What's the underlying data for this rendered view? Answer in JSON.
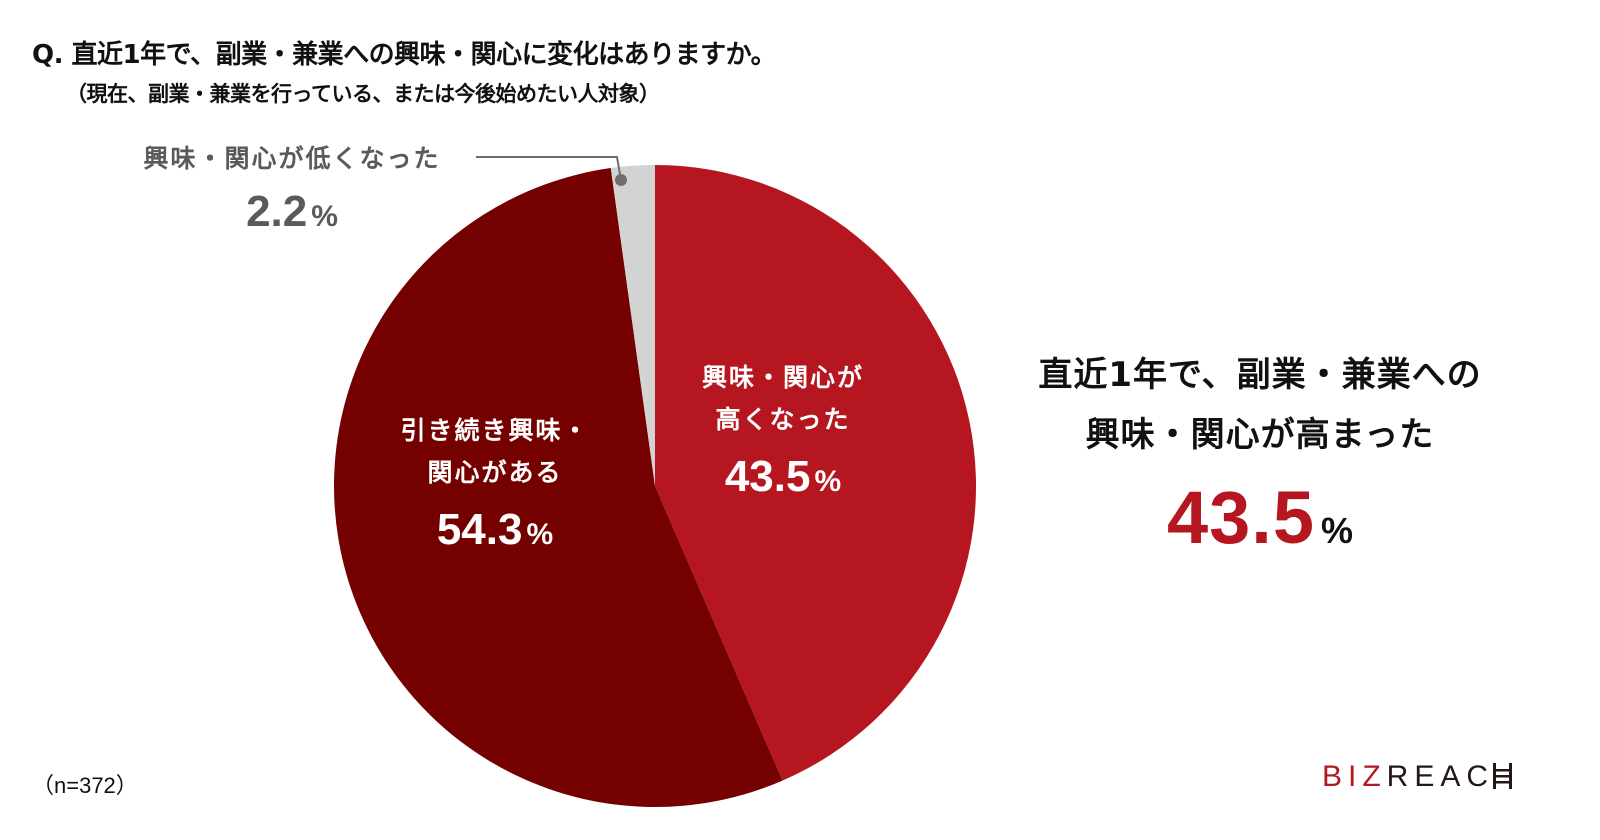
{
  "header": {
    "question": "Q. 直近1年で、副業・兼業への興味・関心に変化はありますか。",
    "subtitle": "（現在、副業・兼業を行っている、または今後始めたい人対象）"
  },
  "colors": {
    "increased": "#b5161f",
    "continued": "#750000",
    "decreased": "#d3d3d3",
    "leader_line": "#6e6e6e",
    "low_label_text": "#5a5a5a",
    "accent": "#b5161f"
  },
  "chart_data": {
    "type": "pie",
    "title": "Q. 直近1年で、副業・兼業への興味・関心に変化はありますか。",
    "subtitle": "（現在、副業・兼業を行っている、または今後始めたい人対象）",
    "categories": [
      "興味・関心が高くなった",
      "引き続き興味・関心がある",
      "興味・関心が低くなった"
    ],
    "values": [
      43.5,
      54.3,
      2.2
    ],
    "unit": "%",
    "start_angle": "12 o'clock, clockwise",
    "sample_size": "n=372",
    "legend": "none (direct labels)",
    "annotation": "直近1年で、副業・兼業への興味・関心が高まった 43.5%"
  },
  "slices": [
    {
      "label_line1": "興味・関心が",
      "label_line2": "高くなった",
      "value": "43.5",
      "unit": "%"
    },
    {
      "label_line1": "引き続き興味・",
      "label_line2": "関心がある",
      "value": "54.3",
      "unit": "%"
    },
    {
      "label_line1": "興味・関心が低くなった",
      "value": "2.2",
      "unit": "%"
    }
  ],
  "summary": {
    "line1": "直近1年で、副業・兼業への",
    "line2": "興味・関心が高まった",
    "value": "43.5",
    "unit": "%"
  },
  "footer": {
    "sample_note": "（n=372）",
    "logo_biz": "BIZ",
    "logo_reach": "REAC",
    "logo_h_icon": "ladder-h-glyph"
  }
}
